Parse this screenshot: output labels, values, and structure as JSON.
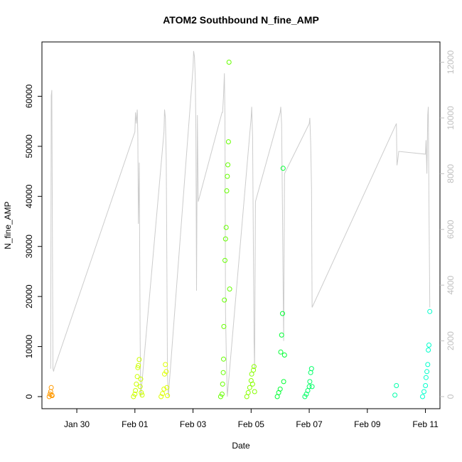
{
  "chart_data": {
    "type": "scatter",
    "title": "ATOM2 Southbound N_fine_AMP",
    "xlabel": "Date",
    "ylabel": "N_fine_AMP",
    "x_tick_labels": [
      "Jan 30",
      "Feb 01",
      "Feb 03",
      "Feb 05",
      "Feb 07",
      "Feb 09",
      "Feb 11"
    ],
    "x_range_days": [
      28.8,
      40.5
    ],
    "x_ticks_days": [
      30,
      32,
      34,
      36,
      38,
      40,
      42
    ],
    "ylim": [
      0,
      70000
    ],
    "y_ticks": [
      0,
      10000,
      20000,
      30000,
      40000,
      50000,
      60000
    ],
    "y2lim": [
      0,
      12600
    ],
    "y2_ticks": [
      0,
      2000,
      4000,
      6000,
      8000,
      10000,
      12000
    ],
    "grid": false,
    "colors": {
      "Jan 29": "#ff9900",
      "Feb 01": "#ccff00",
      "Feb 02": "#ddff00",
      "Feb 03": "#66ff00",
      "Feb 04": "#88ff00",
      "Feb 05": "#00ff33",
      "Feb 06": "#00ff66",
      "Feb 10": "#00ffaa",
      "Feb 11": "#00ffcc",
      "line": "#cccccc"
    },
    "point_series": [
      {
        "color_key": "Jan 29",
        "x": [
          29.05,
          29.08,
          29.1,
          29.12,
          29.14,
          29.15
        ],
        "y": [
          0,
          500,
          1000,
          1800,
          300,
          200
        ]
      },
      {
        "color_key": "Feb 01",
        "x": [
          31.95,
          32.0,
          32.02,
          32.05,
          32.08,
          32.1,
          32.12,
          32.15,
          32.18,
          32.2,
          32.22,
          32.25
        ],
        "y": [
          0,
          500,
          1200,
          2500,
          4000,
          5800,
          6200,
          7400,
          2000,
          3500,
          800,
          300
        ]
      },
      {
        "color_key": "Feb 02",
        "x": [
          32.9,
          32.95,
          33.0,
          33.02,
          33.05,
          33.08,
          33.1,
          33.12
        ],
        "y": [
          0,
          600,
          1500,
          4500,
          6400,
          5000,
          1800,
          200
        ]
      },
      {
        "color_key": "Feb 03",
        "x": [
          34.95,
          35.0,
          35.02,
          35.04,
          35.05,
          35.06,
          35.08,
          35.1,
          35.12,
          35.14,
          35.16,
          35.18,
          35.2,
          35.22,
          35.24,
          35.26
        ],
        "y": [
          0,
          500,
          2500,
          4800,
          7500,
          14000,
          19300,
          27200,
          31500,
          33800,
          41100,
          44000,
          46300,
          50900,
          66800,
          21500
        ]
      },
      {
        "color_key": "Feb 04",
        "x": [
          35.85,
          35.9,
          35.95,
          36.0,
          36.02,
          36.05,
          36.08,
          36.1,
          36.12
        ],
        "y": [
          0,
          800,
          1800,
          3200,
          4500,
          2500,
          5300,
          6000,
          1000
        ]
      },
      {
        "color_key": "Feb 05",
        "x": [
          36.9,
          36.95,
          37.0,
          37.02,
          37.05,
          37.08,
          37.1,
          37.12,
          37.15
        ],
        "y": [
          0,
          800,
          1500,
          8900,
          12300,
          16600,
          45600,
          3000,
          8300
        ]
      },
      {
        "color_key": "Feb 06",
        "x": [
          37.85,
          37.9,
          37.95,
          38.0,
          38.02,
          38.05,
          38.08,
          38.1
        ],
        "y": [
          0,
          500,
          1200,
          2000,
          3000,
          4800,
          5600,
          2000
        ]
      },
      {
        "color_key": "Feb 10",
        "x": [
          40.95,
          41.0
        ],
        "y": [
          300,
          2200
        ]
      },
      {
        "color_key": "Feb 11",
        "x": [
          41.9,
          41.95,
          42.0,
          42.02,
          42.05,
          42.08,
          42.1,
          42.12,
          42.15
        ],
        "y": [
          0,
          1000,
          2200,
          3800,
          5000,
          6400,
          9300,
          10300,
          17000
        ]
      }
    ],
    "secondary_line": {
      "axis": "right",
      "color_key": "line",
      "x": [
        29.1,
        29.12,
        29.14,
        29.18,
        29.2,
        29.22,
        32.0,
        32.02,
        32.05,
        32.08,
        32.1,
        32.12,
        32.15,
        32.18,
        32.2,
        33.0,
        33.02,
        33.05,
        33.08,
        33.1,
        33.12,
        33.15,
        34.0,
        34.02,
        34.05,
        34.08,
        34.1,
        34.12,
        34.15,
        34.18,
        35.0,
        35.02,
        35.05,
        35.08,
        35.1,
        35.12,
        35.15,
        35.18,
        36.0,
        36.02,
        36.05,
        36.08,
        36.1,
        36.12,
        36.15,
        37.0,
        37.02,
        37.05,
        37.08,
        37.1,
        37.12,
        37.15,
        38.0,
        38.02,
        38.05,
        38.08,
        38.1,
        41.0,
        41.02,
        41.05,
        41.08,
        42.0,
        42.02,
        42.05,
        42.08,
        42.1,
        42.12,
        42.15
      ],
      "y": [
        1000,
        10800,
        11000,
        1000,
        900,
        1000,
        9500,
        10200,
        9800,
        10300,
        9400,
        6200,
        8400,
        2000,
        0,
        9500,
        10300,
        10000,
        8500,
        4600,
        800,
        0,
        11800,
        12400,
        12200,
        11400,
        9500,
        3800,
        10100,
        7000,
        10200,
        10200,
        10800,
        11600,
        10000,
        3000,
        1200,
        0,
        10000,
        10400,
        9300,
        5000,
        2000,
        1000,
        7000,
        10200,
        10400,
        9800,
        6500,
        4000,
        2000,
        8000,
        9800,
        10000,
        9100,
        7500,
        3200,
        9800,
        8300,
        8500,
        8800,
        8700,
        9200,
        8000,
        10100,
        10400,
        7000,
        3200
      ]
    }
  }
}
